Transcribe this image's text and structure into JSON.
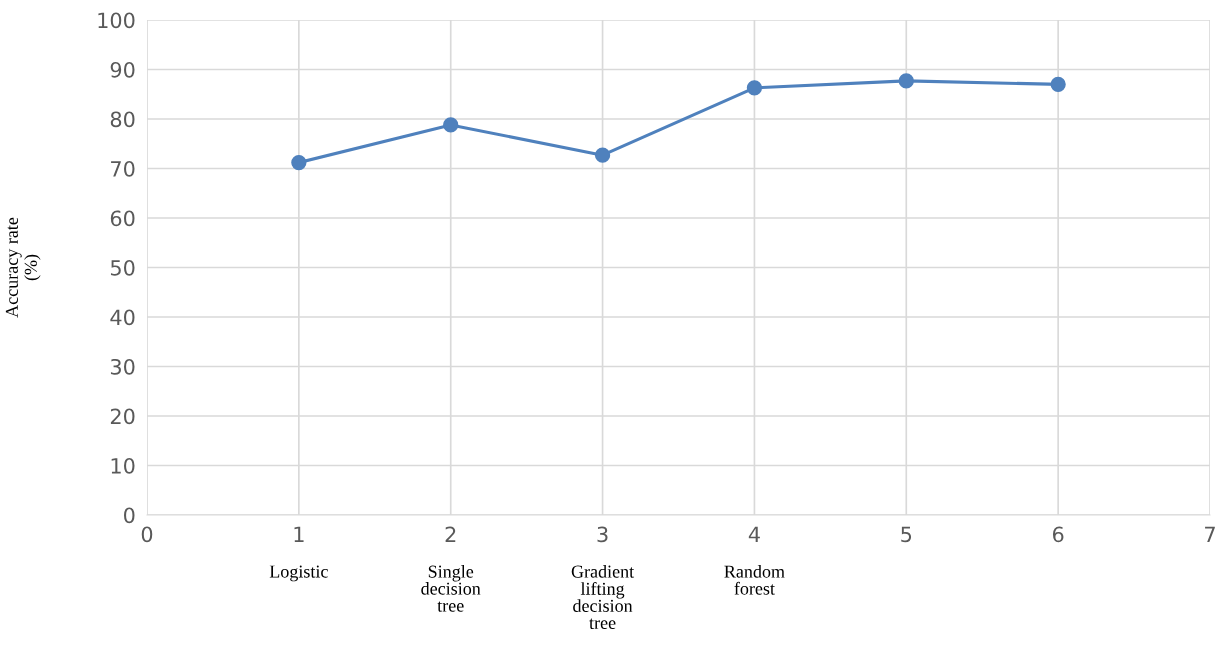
{
  "chart_data": {
    "type": "line",
    "ylabel": "Accuracy rate\n(%)",
    "x": [
      1,
      2,
      3,
      4,
      5,
      6
    ],
    "series": [
      {
        "color": "#4f81bd",
        "values": [
          71.2,
          78.8,
          72.7,
          86.3,
          87.7,
          87.0
        ]
      }
    ],
    "xlim": [
      0,
      7
    ],
    "xticks": [
      0,
      1,
      2,
      3,
      4,
      5,
      6,
      7
    ],
    "ylim": [
      0,
      100
    ],
    "yticks": [
      0,
      10,
      20,
      30,
      40,
      50,
      60,
      70,
      80,
      90,
      100
    ],
    "grid": true,
    "marker": "circle",
    "line_style": "solid",
    "legend": false,
    "annotations": [
      "Logistic",
      "Single\ndecision\ntree",
      "Gradient\nlifting\ndecision\ntree",
      "Random\nforest"
    ]
  }
}
